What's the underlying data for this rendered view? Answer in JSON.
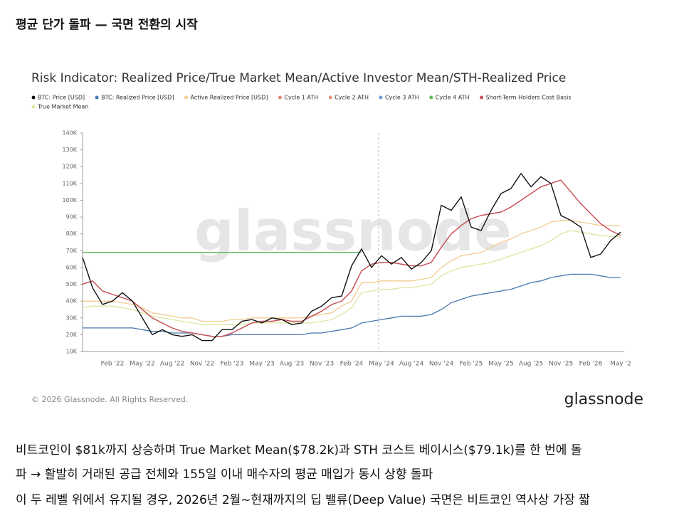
{
  "header": {
    "title": "평균 단가 돌파 — 국면 전환의 시작"
  },
  "chart_data": {
    "type": "line",
    "title": "Risk Indicator: Realized Price/True Market Mean/Active Investor Mean/STH-Realized Price",
    "watermark": "glassnode",
    "copyright": "© 2026 Glassnode. All Rights Reserved.",
    "logo": "glassnode",
    "categories": [
      null,
      null,
      null,
      "Feb '22",
      null,
      null,
      "May '22",
      null,
      null,
      "Aug '22",
      null,
      null,
      "Nov '22",
      null,
      null,
      "Feb '23",
      null,
      null,
      "May '23",
      null,
      null,
      "Aug '23",
      null,
      null,
      "Nov '23",
      null,
      null,
      "Feb '24",
      null,
      null,
      "May '24",
      null,
      null,
      "Aug '24",
      null,
      null,
      "Nov '24",
      null,
      null,
      "Feb '25",
      null,
      null,
      "May '25",
      null,
      null,
      "Aug '25",
      null,
      null,
      "Nov '25",
      null,
      null,
      "Feb '26",
      null,
      null,
      "May '2"
    ],
    "ylim": [
      10000,
      140000
    ],
    "yticks": [
      {
        "value": 10000,
        "label": "10K"
      },
      {
        "value": 20000,
        "label": "20K"
      },
      {
        "value": 30000,
        "label": "30K"
      },
      {
        "value": 40000,
        "label": "40K"
      },
      {
        "value": 50000,
        "label": "50K"
      },
      {
        "value": 60000,
        "label": "60K"
      },
      {
        "value": 70000,
        "label": "70K"
      },
      {
        "value": 80000,
        "label": "80K"
      },
      {
        "value": 90000,
        "label": "90K"
      },
      {
        "value": 100000,
        "label": "100K"
      },
      {
        "value": 110000,
        "label": "110K"
      },
      {
        "value": 120000,
        "label": "120K"
      },
      {
        "value": 130000,
        "label": "130K"
      },
      {
        "value": 140000,
        "label": "140K"
      }
    ],
    "grid": false,
    "legend": "top-left",
    "series": [
      {
        "name": "BTC: Price [USD]",
        "color": "#111111",
        "values": [
          66000,
          48000,
          38000,
          40000,
          45000,
          40000,
          30000,
          20000,
          23000,
          20000,
          19000,
          20000,
          16500,
          16500,
          23000,
          23000,
          28000,
          29000,
          27000,
          30000,
          29000,
          26000,
          27000,
          34000,
          37000,
          42000,
          43000,
          61000,
          71000,
          60000,
          67000,
          62000,
          66000,
          59000,
          63000,
          70000,
          97000,
          94000,
          102000,
          84000,
          82000,
          94000,
          104000,
          107000,
          116000,
          108000,
          114000,
          110000,
          91000,
          88000,
          84000,
          66000,
          68000,
          76000,
          81000
        ]
      },
      {
        "name": "BTC: Realized Price [USD]",
        "color": "#4a78b0",
        "values": [
          24000,
          24000,
          24000,
          24000,
          24000,
          24000,
          23000,
          22000,
          22000,
          21000,
          21000,
          21000,
          20000,
          19000,
          19000,
          20000,
          20000,
          20000,
          20000,
          20000,
          20000,
          20000,
          20000,
          21000,
          21000,
          22000,
          23000,
          24000,
          27000,
          28000,
          29000,
          30000,
          31000,
          31000,
          31000,
          32000,
          35000,
          39000,
          41000,
          43000,
          44000,
          45000,
          46000,
          47000,
          49000,
          51000,
          52000,
          54000,
          55000,
          56000,
          56000,
          56000,
          55000,
          54000,
          54000
        ]
      },
      {
        "name": "Active Realized Price [USD]",
        "color": "#f2cc8f",
        "values": [
          40000,
          40000,
          40000,
          40000,
          39000,
          38000,
          36000,
          33000,
          32000,
          31000,
          30000,
          30000,
          28000,
          28000,
          28000,
          29000,
          29000,
          30000,
          30000,
          30000,
          30000,
          30000,
          30000,
          31000,
          32000,
          33000,
          37000,
          40000,
          51000,
          51000,
          52000,
          52000,
          52000,
          52000,
          53000,
          54000,
          60000,
          64000,
          67000,
          68000,
          69000,
          72000,
          75000,
          77000,
          80000,
          82000,
          84000,
          87000,
          88000,
          88000,
          87000,
          86000,
          85000,
          85000,
          85000
        ]
      },
      {
        "name": "Cycle 1 ATH",
        "color": "#e8836b",
        "values": [
          null,
          null,
          null,
          null,
          null,
          null,
          null,
          null,
          null,
          null,
          null,
          null,
          null,
          null,
          null,
          null,
          null,
          null,
          null,
          null,
          null,
          null,
          null,
          null,
          null,
          null,
          null,
          null,
          null,
          null,
          null,
          null,
          null,
          null,
          null,
          null,
          null,
          null,
          null,
          null,
          null,
          null,
          null,
          null,
          null,
          null,
          null,
          null,
          null,
          null,
          null,
          null,
          null,
          null,
          null
        ]
      },
      {
        "name": "Cycle 2 ATH",
        "color": "#e99a7a",
        "values": [
          null,
          null,
          null,
          null,
          null,
          null,
          null,
          null,
          null,
          null,
          null,
          null,
          null,
          null,
          null,
          null,
          null,
          null,
          null,
          null,
          null,
          null,
          null,
          null,
          null,
          null,
          null,
          null,
          null,
          null,
          null,
          null,
          null,
          null,
          null,
          null,
          null,
          null,
          null,
          null,
          null,
          null,
          null,
          null,
          null,
          null,
          null,
          null,
          null,
          null,
          null,
          null,
          null,
          null,
          null
        ]
      },
      {
        "name": "Cycle 3 ATH",
        "color": "#6a9fd4",
        "values": [
          null,
          null,
          null,
          null,
          null,
          null,
          null,
          null,
          null,
          null,
          null,
          null,
          null,
          null,
          null,
          null,
          null,
          null,
          null,
          null,
          null,
          null,
          null,
          null,
          null,
          null,
          null,
          null,
          null,
          null,
          null,
          null,
          null,
          null,
          null,
          null,
          null,
          null,
          null,
          null,
          null,
          null,
          null,
          null,
          null,
          null,
          null,
          null,
          null,
          null,
          null,
          null,
          null,
          null,
          null
        ]
      },
      {
        "name": "Cycle 4 ATH",
        "color": "#5cb85c",
        "values": [
          69000,
          69000,
          69000,
          69000,
          69000,
          69000,
          69000,
          69000,
          69000,
          69000,
          69000,
          69000,
          69000,
          69000,
          69000,
          69000,
          69000,
          69000,
          69000,
          69000,
          69000,
          69000,
          69000,
          69000,
          69000,
          69000,
          69000,
          69000,
          69000,
          null,
          null,
          null,
          null,
          null,
          null,
          null,
          null,
          null,
          null,
          null,
          null,
          null,
          null,
          null,
          null,
          null,
          null,
          null,
          null,
          null,
          null,
          null,
          null,
          null,
          null
        ]
      },
      {
        "name": "Short-Term Holders Cost Basis",
        "color": "#c9545a",
        "values": [
          50000,
          52000,
          46000,
          44000,
          42000,
          40000,
          35000,
          30000,
          27000,
          24000,
          22000,
          21000,
          20000,
          19000,
          19000,
          21000,
          24000,
          27000,
          28000,
          28000,
          29000,
          28000,
          28000,
          31000,
          34000,
          38000,
          40000,
          46000,
          58000,
          62000,
          63000,
          63000,
          62000,
          61000,
          61000,
          63000,
          72000,
          80000,
          85000,
          89000,
          91000,
          92000,
          93000,
          96000,
          100000,
          104000,
          108000,
          110000,
          112000,
          105000,
          98000,
          92000,
          86000,
          82000,
          79100
        ]
      },
      {
        "name": "True Market Mean",
        "color": "#dfe6a0",
        "values": [
          36000,
          37000,
          37000,
          37000,
          36000,
          35000,
          33000,
          31000,
          30000,
          29000,
          28000,
          27000,
          26000,
          26000,
          26000,
          26000,
          26000,
          27000,
          27000,
          27000,
          27000,
          27000,
          27000,
          27000,
          28000,
          29000,
          32000,
          36000,
          45000,
          46000,
          47000,
          47000,
          48000,
          48000,
          49000,
          50000,
          55000,
          58000,
          60000,
          61000,
          62000,
          63000,
          65000,
          67000,
          69000,
          71000,
          73000,
          76000,
          80000,
          82000,
          81000,
          80000,
          79000,
          78500,
          78200
        ]
      }
    ]
  },
  "body": {
    "paragraphs": [
      "비트코인이 $81k까지 상승하며 True Market Mean($78.2k)과 STH 코스트 베이시스($79.1k)를 한 번에 돌",
      "파 → 활발히 거래된 공급 전체와 155일 이내 매수자의 평균 매입가 동시 상향 돌파",
      "이 두 레벨 위에서 유지될 경우, 2026년 2월~현재까지의 딥 밸류(Deep Value) 국면은 비트코인 역사상 가장 짧"
    ]
  }
}
